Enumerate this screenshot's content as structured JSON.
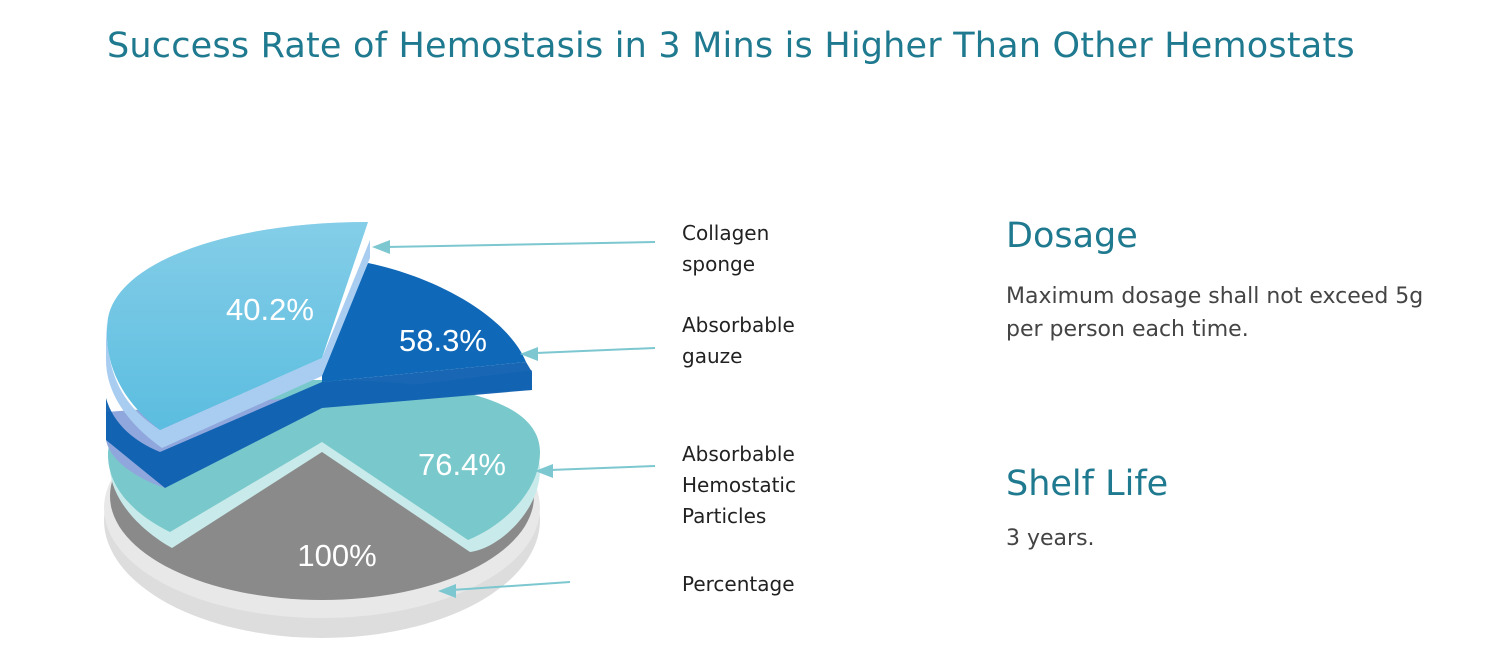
{
  "title": "Success Rate of Hemostasis in 3 Mins is Higher Than Other Hemostats",
  "chart_data": {
    "type": "pie",
    "series": [
      {
        "name": "Collagen sponge",
        "value": 40.2,
        "label": "40.2%",
        "color": "#5bbde0"
      },
      {
        "name": "Absorbable gauze",
        "value": 58.3,
        "label": "58.3%",
        "color": "#0f68b8"
      },
      {
        "name": "Absorbable Hemostatic Particles",
        "value": 76.4,
        "label": "76.4%",
        "color": "#79c9cc"
      },
      {
        "name": "Percentage",
        "value": 100,
        "label": "100%",
        "color": "#8a8a8a"
      }
    ],
    "legend": [
      {
        "text": "Collagen\nsponge"
      },
      {
        "text": "Absorbable\ngauze"
      },
      {
        "text": "Absorbable\nHemostatic\nParticles"
      },
      {
        "text": "Percentage"
      }
    ]
  },
  "info": {
    "dosage": {
      "heading": "Dosage",
      "text": "Maximum dosage shall not exceed 5g per person each time."
    },
    "shelf_life": {
      "heading": "Shelf Life",
      "text": "3 years."
    }
  }
}
